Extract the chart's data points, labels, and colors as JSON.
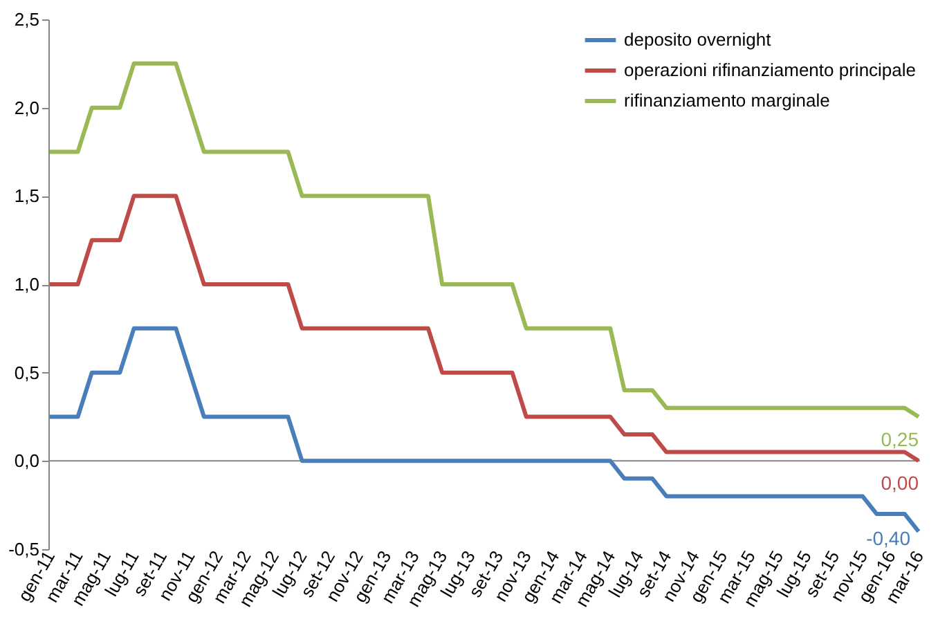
{
  "chart_data": {
    "type": "line",
    "categories": [
      "gen-11",
      null,
      "mar-11",
      null,
      "mag-11",
      null,
      "lug-11",
      null,
      "set-11",
      null,
      "nov-11",
      null,
      "gen-12",
      null,
      "mar-12",
      null,
      "mag-12",
      null,
      "lug-12",
      null,
      "set-12",
      null,
      "nov-12",
      null,
      "gen-13",
      null,
      "mar-13",
      null,
      "mag-13",
      null,
      "lug-13",
      null,
      "set-13",
      null,
      "nov-13",
      null,
      "gen-14",
      null,
      "mar-14",
      null,
      "mag-14",
      null,
      "lug-14",
      null,
      "set-14",
      null,
      "nov-14",
      null,
      "gen-15",
      null,
      "mar-15",
      null,
      "mag-15",
      null,
      "lug-15",
      null,
      "set-15",
      null,
      "nov-15",
      null,
      "gen-16",
      null,
      "mar-16"
    ],
    "series": [
      {
        "name": "deposito overnight",
        "color": "#4a7ebb",
        "values": [
          0.25,
          0.25,
          0.25,
          0.5,
          0.5,
          0.5,
          0.75,
          0.75,
          0.75,
          0.75,
          0.5,
          0.25,
          0.25,
          0.25,
          0.25,
          0.25,
          0.25,
          0.25,
          0,
          0,
          0,
          0,
          0,
          0,
          0,
          0,
          0,
          0,
          0,
          0,
          0,
          0,
          0,
          0,
          0,
          0,
          0,
          0,
          0,
          0,
          0,
          -0.1,
          -0.1,
          -0.1,
          -0.2,
          -0.2,
          -0.2,
          -0.2,
          -0.2,
          -0.2,
          -0.2,
          -0.2,
          -0.2,
          -0.2,
          -0.2,
          -0.2,
          -0.2,
          -0.2,
          -0.2,
          -0.3,
          -0.3,
          -0.3,
          -0.4
        ],
        "value_labels": [
          null,
          null,
          null,
          null,
          null,
          null,
          null,
          null,
          null,
          null,
          null,
          null,
          null,
          null,
          null,
          null,
          null,
          null,
          null,
          null,
          null,
          null,
          null,
          null,
          null,
          null,
          null,
          null,
          null,
          null,
          null,
          null,
          null,
          null,
          null,
          null,
          null,
          null,
          null,
          null,
          null,
          null,
          null,
          null,
          null,
          null,
          null,
          null,
          null,
          null,
          null,
          null,
          null,
          null,
          null,
          null,
          null,
          null,
          null,
          null,
          null,
          null,
          "-0,40"
        ]
      },
      {
        "name": "operazioni rifinanziamento principale",
        "color": "#be4b48",
        "values": [
          1.0,
          1.0,
          1.0,
          1.25,
          1.25,
          1.25,
          1.5,
          1.5,
          1.5,
          1.5,
          1.25,
          1.0,
          1.0,
          1.0,
          1.0,
          1.0,
          1.0,
          1.0,
          0.75,
          0.75,
          0.75,
          0.75,
          0.75,
          0.75,
          0.75,
          0.75,
          0.75,
          0.75,
          0.5,
          0.5,
          0.5,
          0.5,
          0.5,
          0.5,
          0.25,
          0.25,
          0.25,
          0.25,
          0.25,
          0.25,
          0.25,
          0.15,
          0.15,
          0.15,
          0.05,
          0.05,
          0.05,
          0.05,
          0.05,
          0.05,
          0.05,
          0.05,
          0.05,
          0.05,
          0.05,
          0.05,
          0.05,
          0.05,
          0.05,
          0.05,
          0.05,
          0.05,
          0.0
        ],
        "value_labels": [
          null,
          null,
          null,
          null,
          null,
          null,
          null,
          null,
          null,
          null,
          null,
          null,
          null,
          null,
          null,
          null,
          null,
          null,
          null,
          null,
          null,
          null,
          null,
          null,
          null,
          null,
          null,
          null,
          null,
          null,
          null,
          null,
          null,
          null,
          null,
          null,
          null,
          null,
          null,
          null,
          null,
          null,
          null,
          null,
          null,
          null,
          null,
          null,
          null,
          null,
          null,
          null,
          null,
          null,
          null,
          null,
          null,
          null,
          null,
          null,
          null,
          null,
          "0,00"
        ]
      },
      {
        "name": "rifinanziamento marginale",
        "color": "#98b954",
        "values": [
          1.75,
          1.75,
          1.75,
          2.0,
          2.0,
          2.0,
          2.25,
          2.25,
          2.25,
          2.25,
          2.0,
          1.75,
          1.75,
          1.75,
          1.75,
          1.75,
          1.75,
          1.75,
          1.5,
          1.5,
          1.5,
          1.5,
          1.5,
          1.5,
          1.5,
          1.5,
          1.5,
          1.5,
          1.0,
          1.0,
          1.0,
          1.0,
          1.0,
          1.0,
          0.75,
          0.75,
          0.75,
          0.75,
          0.75,
          0.75,
          0.75,
          0.4,
          0.4,
          0.4,
          0.3,
          0.3,
          0.3,
          0.3,
          0.3,
          0.3,
          0.3,
          0.3,
          0.3,
          0.3,
          0.3,
          0.3,
          0.3,
          0.3,
          0.3,
          0.3,
          0.3,
          0.3,
          0.25
        ],
        "value_labels": [
          null,
          null,
          null,
          null,
          null,
          null,
          null,
          null,
          null,
          null,
          null,
          null,
          null,
          null,
          null,
          null,
          null,
          null,
          null,
          null,
          null,
          null,
          null,
          null,
          null,
          null,
          null,
          null,
          null,
          null,
          null,
          null,
          null,
          null,
          null,
          null,
          null,
          null,
          null,
          null,
          null,
          null,
          null,
          null,
          null,
          null,
          null,
          null,
          null,
          null,
          null,
          null,
          null,
          null,
          null,
          null,
          null,
          null,
          null,
          null,
          null,
          null,
          "0,25"
        ]
      }
    ],
    "ylim": [
      -0.5,
      2.5
    ],
    "yticks": [
      {
        "value": -0.5,
        "label": "-0,5"
      },
      {
        "value": 0,
        "label": "0,0"
      },
      {
        "value": 0.5,
        "label": "0,5"
      },
      {
        "value": 1,
        "label": "1,0"
      },
      {
        "value": 1.5,
        "label": "1,5"
      },
      {
        "value": 2,
        "label": "2,0"
      },
      {
        "value": 2.5,
        "label": "2,5"
      }
    ],
    "ref_lines": [
      {
        "axis": "y",
        "value": 0,
        "color": "#868686"
      }
    ],
    "grid": false,
    "legend": "top right",
    "marker": "none",
    "line_style": "solid"
  }
}
